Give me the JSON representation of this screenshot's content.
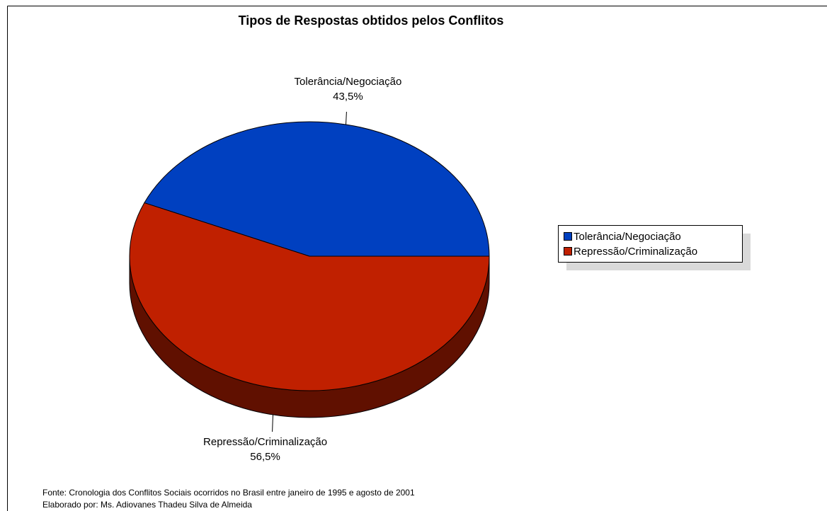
{
  "chart_data": {
    "type": "pie",
    "title": "Tipos de Respostas obtidos pelos Conflitos",
    "categories": [
      "Tolerância/Negociação",
      "Repressão/Criminalização"
    ],
    "values": [
      43.5,
      56.5
    ],
    "value_labels": [
      "43,5%",
      "56,5%"
    ],
    "colors": [
      "#0040c0",
      "#c02000"
    ],
    "legend": "right",
    "footnotes": [
      "Fonte: Cronologia dos Conflitos Sociais ocorridos no Brasil entre janeiro de 1995 e agosto de 2001",
      "Elaborado por: Ms. Adiovanes Thadeu Silva de Almeida"
    ]
  }
}
